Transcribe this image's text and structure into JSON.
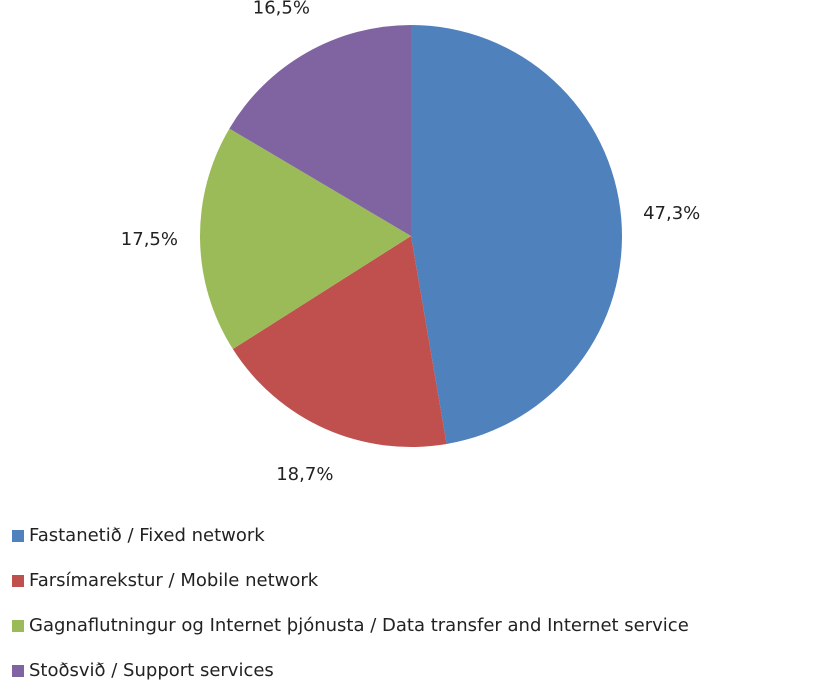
{
  "chart_data": {
    "type": "pie",
    "categories": [
      "Fastanetið / Fixed network",
      "Farsímarekstur / Mobile network",
      "Gagnaflutningur og Internet þjónusta / Data transfer and Internet service",
      "Stoðsvið / Support services"
    ],
    "values": [
      47.3,
      18.7,
      17.5,
      16.5
    ],
    "value_labels": [
      "47,3%",
      "18,7%",
      "17,5%",
      "16,5%"
    ],
    "colors": [
      "#4f81bd",
      "#c0504d",
      "#9bbb59",
      "#8064a2"
    ],
    "legend": "bottom"
  }
}
